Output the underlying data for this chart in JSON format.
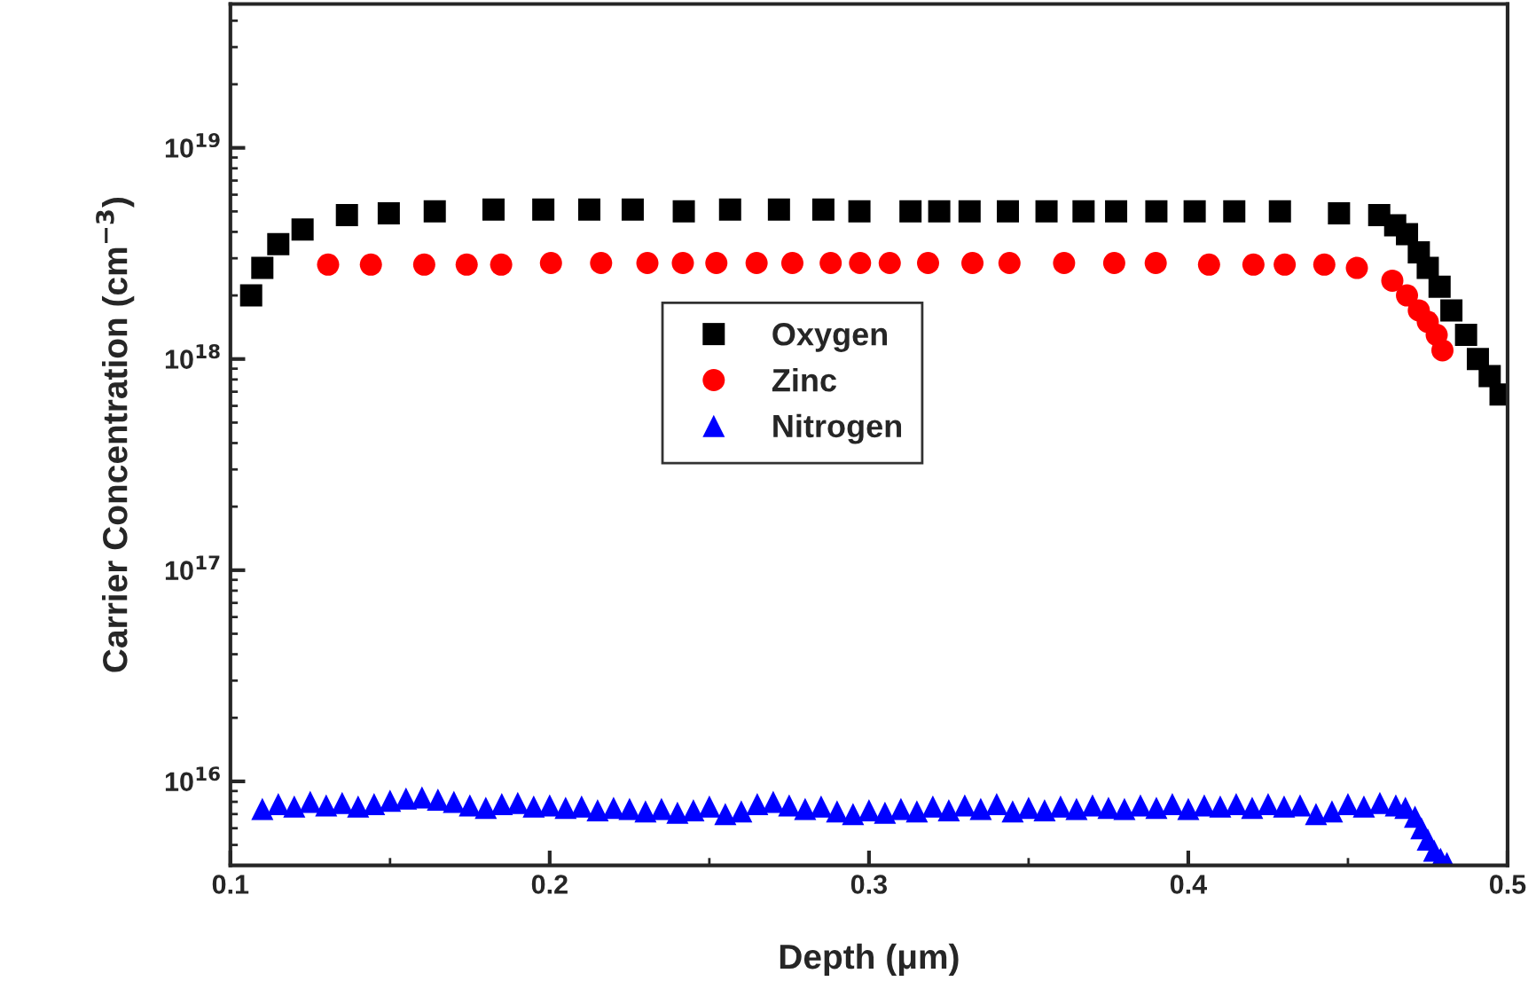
{
  "chart_data": {
    "type": "scatter",
    "xlabel": "Depth (μm)",
    "ylabel": "Carrier Concentration (cm$^{−3}$)",
    "log": "y",
    "xlim": [
      0.1,
      0.5
    ],
    "xticks": [
      0.1,
      0.2,
      0.3,
      0.4,
      0.5
    ],
    "ylim": [
      4000000000000000.0,
      4.8e+19
    ],
    "yticks": [
      {
        "value": 1e+16,
        "label": "10$^{16}$"
      },
      {
        "value": 1e+17,
        "label": "10$^{17}$"
      },
      {
        "value": 1e+18,
        "label": "10$^{18}$"
      },
      {
        "value": 1e+19,
        "label": "10$^{19}$"
      }
    ],
    "grid": false,
    "legend": "center",
    "series": [
      {
        "name": "Oxygen",
        "color": "#000000",
        "marker": "square",
        "x": [
          0.1065,
          0.11,
          0.115,
          0.1226,
          0.1365,
          0.1496,
          0.164,
          0.1824,
          0.198,
          0.2124,
          0.226,
          0.242,
          0.2565,
          0.2718,
          0.2857,
          0.297,
          0.313,
          0.322,
          0.3315,
          0.3435,
          0.3556,
          0.3672,
          0.3774,
          0.39,
          0.402,
          0.4144,
          0.4287,
          0.4472,
          0.4598,
          0.4648,
          0.4685,
          0.4722,
          0.475,
          0.4787,
          0.4824,
          0.487,
          0.4907,
          0.4944,
          0.4978
        ],
        "values": [
          2e+18,
          2.7e+18,
          3.5e+18,
          4.1e+18,
          4.8e+18,
          4.9e+18,
          5e+18,
          5.1e+18,
          5.1e+18,
          5.1e+18,
          5.1e+18,
          5e+18,
          5.1e+18,
          5.1e+18,
          5.1e+18,
          5e+18,
          5e+18,
          5e+18,
          5e+18,
          5e+18,
          5e+18,
          5e+18,
          5e+18,
          5e+18,
          5e+18,
          5e+18,
          5e+18,
          4.9e+18,
          4.8e+18,
          4.3e+18,
          3.9e+18,
          3.2e+18,
          2.7e+18,
          2.2e+18,
          1.7e+18,
          1.3e+18,
          1e+18,
          8.3e+17,
          6.8e+17
        ]
      },
      {
        "name": "Zinc",
        "color": "#ff0000",
        "marker": "circle",
        "x": [
          0.1306,
          0.144,
          0.1607,
          0.174,
          0.1848,
          0.2004,
          0.2161,
          0.2306,
          0.2417,
          0.2522,
          0.2648,
          0.276,
          0.288,
          0.2972,
          0.3065,
          0.3185,
          0.3324,
          0.344,
          0.3611,
          0.3768,
          0.3898,
          0.4065,
          0.4204,
          0.4302,
          0.4426,
          0.4528,
          0.4639,
          0.4685,
          0.4722,
          0.475,
          0.4778,
          0.4796
        ],
        "values": [
          2.8e+18,
          2.8e+18,
          2.8e+18,
          2.8e+18,
          2.8e+18,
          2.85e+18,
          2.85e+18,
          2.85e+18,
          2.85e+18,
          2.85e+18,
          2.85e+18,
          2.85e+18,
          2.85e+18,
          2.85e+18,
          2.85e+18,
          2.85e+18,
          2.85e+18,
          2.85e+18,
          2.85e+18,
          2.85e+18,
          2.85e+18,
          2.8e+18,
          2.8e+18,
          2.8e+18,
          2.8e+18,
          2.7e+18,
          2.35e+18,
          2e+18,
          1.7e+18,
          1.5e+18,
          1.3e+18,
          1.1e+18
        ]
      },
      {
        "name": "Nitrogen",
        "color": "#0000ff",
        "marker": "triangle",
        "x": [
          0.11,
          0.115,
          0.12,
          0.125,
          0.13,
          0.135,
          0.14,
          0.145,
          0.15,
          0.155,
          0.16,
          0.165,
          0.17,
          0.175,
          0.18,
          0.185,
          0.19,
          0.195,
          0.2,
          0.205,
          0.21,
          0.215,
          0.22,
          0.225,
          0.23,
          0.235,
          0.24,
          0.245,
          0.25,
          0.255,
          0.26,
          0.265,
          0.27,
          0.275,
          0.28,
          0.285,
          0.29,
          0.295,
          0.3,
          0.305,
          0.31,
          0.315,
          0.32,
          0.325,
          0.33,
          0.335,
          0.34,
          0.345,
          0.35,
          0.355,
          0.36,
          0.365,
          0.37,
          0.375,
          0.38,
          0.385,
          0.39,
          0.395,
          0.4,
          0.405,
          0.41,
          0.415,
          0.42,
          0.425,
          0.43,
          0.435,
          0.44,
          0.445,
          0.45,
          0.455,
          0.46,
          0.465,
          0.468,
          0.471,
          0.473,
          0.475,
          0.477,
          0.479,
          0.481
        ],
        "values": [
          7400000000000000.0,
          7800000000000000.0,
          7600000000000000.0,
          8000000000000000.0,
          7700000000000000.0,
          7900000000000000.0,
          7600000000000000.0,
          7800000000000000.0,
          8100000000000000.0,
          8300000000000000.0,
          8400000000000000.0,
          8200000000000000.0,
          8000000000000000.0,
          7700000000000000.0,
          7500000000000000.0,
          7800000000000000.0,
          7900000000000000.0,
          7600000000000000.0,
          7700000000000000.0,
          7500000000000000.0,
          7600000000000000.0,
          7300000000000000.0,
          7500000000000000.0,
          7400000000000000.0,
          7200000000000000.0,
          7400000000000000.0,
          7100000000000000.0,
          7300000000000000.0,
          7600000000000000.0,
          7000000000000000.0,
          7200000000000000.0,
          7800000000000000.0,
          8000000000000000.0,
          7700000000000000.0,
          7400000000000000.0,
          7600000000000000.0,
          7200000000000000.0,
          7000000000000000.0,
          7300000000000000.0,
          7100000000000000.0,
          7400000000000000.0,
          7200000000000000.0,
          7600000000000000.0,
          7300000000000000.0,
          7700000000000000.0,
          7400000000000000.0,
          7800000000000000.0,
          7200000000000000.0,
          7500000000000000.0,
          7300000000000000.0,
          7600000000000000.0,
          7400000000000000.0,
          7700000000000000.0,
          7500000000000000.0,
          7400000000000000.0,
          7700000000000000.0,
          7500000000000000.0,
          7800000000000000.0,
          7400000000000000.0,
          7700000000000000.0,
          7600000000000000.0,
          7800000000000000.0,
          7500000000000000.0,
          7800000000000000.0,
          7600000000000000.0,
          7700000000000000.0,
          7000000000000000.0,
          7200000000000000.0,
          7800000000000000.0,
          7600000000000000.0,
          7900000000000000.0,
          7700000000000000.0,
          7500000000000000.0,
          6800000000000000.0,
          6000000000000000.0,
          5300000000000000.0,
          4700000000000000.0,
          4300000000000000.0,
          4100000000000000.0
        ]
      }
    ]
  }
}
